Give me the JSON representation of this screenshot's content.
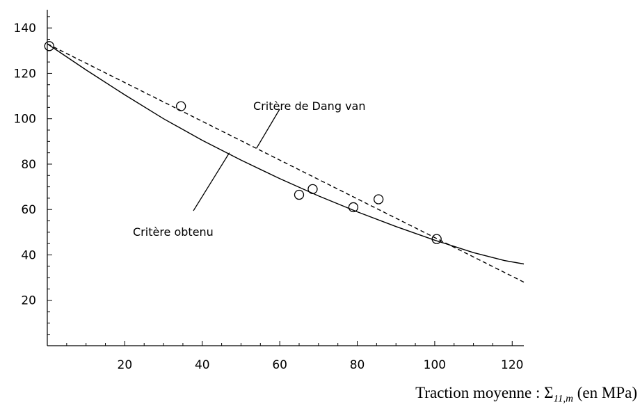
{
  "chart_data": {
    "type": "scatter",
    "xlabel_prefix": "Traction moyenne : Σ",
    "xlabel_sub": "11,m",
    "xlabel_suffix": " (en MPa)",
    "ylabel": "",
    "xlim": [
      0,
      123
    ],
    "ylim": [
      0,
      147
    ],
    "x_ticks": [
      20,
      40,
      60,
      80,
      100,
      120
    ],
    "y_ticks": [
      20,
      40,
      60,
      80,
      100,
      120,
      140
    ],
    "points": [
      {
        "x": 0.5,
        "y": 132
      },
      {
        "x": 34.5,
        "y": 105.5
      },
      {
        "x": 65,
        "y": 66.5
      },
      {
        "x": 68.5,
        "y": 69
      },
      {
        "x": 79,
        "y": 61
      },
      {
        "x": 85.5,
        "y": 64.5
      },
      {
        "x": 100.5,
        "y": 47
      }
    ],
    "series": [
      {
        "line_style": "solid",
        "x": [
          0,
          10,
          20,
          30,
          40,
          50,
          60,
          70,
          80,
          90,
          100,
          110,
          118,
          123
        ],
        "y": [
          133,
          121.5,
          110.5,
          100,
          90.5,
          81.8,
          73.6,
          66,
          59,
          52.5,
          46.5,
          41,
          37.5,
          36
        ]
      },
      {
        "line_style": "dashed",
        "x": [
          0,
          123
        ],
        "y": [
          133,
          28
        ]
      }
    ],
    "annotations": [
      {
        "text": "Critère de Dang van",
        "target": {
          "x": 54,
          "y": 87
        }
      },
      {
        "text": "Critère obtenu",
        "target": {
          "x": 47,
          "y": 85
        }
      }
    ]
  }
}
